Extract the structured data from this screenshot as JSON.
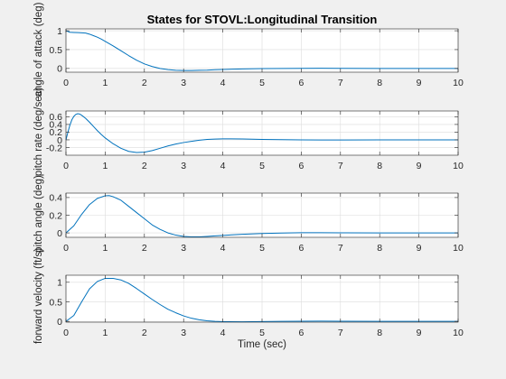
{
  "chart_data": [
    {
      "type": "line",
      "title": "States for STOVL:Longitudinal Transition",
      "ylabel": "angle of attack (deg)",
      "xlabel": "",
      "xlim": [
        0,
        10
      ],
      "ylim": [
        -0.1,
        1.05
      ],
      "xticks": [
        0,
        1,
        2,
        3,
        4,
        5,
        6,
        7,
        8,
        9,
        10
      ],
      "yticks": [
        0,
        0.5,
        1
      ],
      "ytick_labels": [
        "0",
        "0.5",
        "1"
      ],
      "grid": true,
      "color": "#0072BD",
      "series": [
        {
          "x": [
            0,
            0.1,
            0.2,
            0.3,
            0.4,
            0.5,
            0.6,
            0.7,
            0.8,
            0.9,
            1.0,
            1.2,
            1.4,
            1.6,
            1.8,
            2.0,
            2.2,
            2.4,
            2.6,
            2.8,
            3.0,
            3.2,
            3.4,
            3.6,
            3.8,
            4.0,
            4.5,
            5.0,
            5.5,
            6.0,
            6.5,
            7.0,
            8.0,
            9.0,
            10.0
          ],
          "y": [
            1.0,
            0.96,
            0.955,
            0.95,
            0.945,
            0.94,
            0.91,
            0.87,
            0.83,
            0.78,
            0.72,
            0.6,
            0.47,
            0.34,
            0.22,
            0.12,
            0.05,
            0.0,
            -0.03,
            -0.05,
            -0.055,
            -0.055,
            -0.05,
            -0.045,
            -0.035,
            -0.028,
            -0.012,
            -0.003,
            0.0,
            0.003,
            0.004,
            0.003,
            0.0,
            0.0,
            0.0
          ]
        }
      ]
    },
    {
      "type": "line",
      "title": "",
      "ylabel": "pitch rate (deg/sec)",
      "xlabel": "",
      "xlim": [
        0,
        10
      ],
      "ylim": [
        -0.4,
        0.75
      ],
      "xticks": [
        0,
        1,
        2,
        3,
        4,
        5,
        6,
        7,
        8,
        9,
        10
      ],
      "yticks": [
        -0.2,
        0,
        0.2,
        0.4,
        0.6
      ],
      "ytick_labels": [
        "-0.2",
        "0",
        "0.2",
        "0.4",
        "0.6"
      ],
      "grid": true,
      "color": "#0072BD",
      "series": [
        {
          "x": [
            0,
            0.05,
            0.1,
            0.15,
            0.2,
            0.25,
            0.3,
            0.35,
            0.4,
            0.5,
            0.6,
            0.7,
            0.8,
            0.9,
            1.0,
            1.2,
            1.4,
            1.6,
            1.8,
            2.0,
            2.2,
            2.4,
            2.6,
            2.8,
            3.0,
            3.2,
            3.4,
            3.6,
            3.8,
            4.0,
            4.2,
            4.5,
            5.0,
            5.5,
            6.0,
            6.5,
            7.0,
            8.0,
            9.0,
            10.0
          ],
          "y": [
            0.0,
            0.2,
            0.38,
            0.52,
            0.61,
            0.66,
            0.68,
            0.67,
            0.64,
            0.56,
            0.46,
            0.35,
            0.24,
            0.14,
            0.05,
            -0.1,
            -0.22,
            -0.3,
            -0.33,
            -0.32,
            -0.28,
            -0.22,
            -0.16,
            -0.11,
            -0.07,
            -0.04,
            -0.01,
            0.01,
            0.02,
            0.025,
            0.025,
            0.022,
            0.012,
            0.005,
            0.0,
            -0.004,
            -0.004,
            -0.002,
            0.0,
            0.0
          ]
        }
      ]
    },
    {
      "type": "line",
      "title": "",
      "ylabel": "pitch angle (deg)",
      "xlabel": "",
      "xlim": [
        0,
        10
      ],
      "ylim": [
        -0.05,
        0.45
      ],
      "xticks": [
        0,
        1,
        2,
        3,
        4,
        5,
        6,
        7,
        8,
        9,
        10
      ],
      "yticks": [
        0,
        0.2,
        0.4
      ],
      "ytick_labels": [
        "0",
        "0.2",
        "0.4"
      ],
      "grid": true,
      "color": "#0072BD",
      "series": [
        {
          "x": [
            0,
            0.2,
            0.4,
            0.6,
            0.8,
            1.0,
            1.1,
            1.2,
            1.4,
            1.6,
            1.8,
            2.0,
            2.2,
            2.4,
            2.6,
            2.8,
            3.0,
            3.2,
            3.4,
            3.6,
            3.8,
            4.0,
            4.5,
            5.0,
            5.5,
            6.0,
            6.5,
            7.0,
            8.0,
            9.0,
            10.0
          ],
          "y": [
            0.0,
            0.08,
            0.21,
            0.32,
            0.39,
            0.42,
            0.422,
            0.41,
            0.37,
            0.3,
            0.23,
            0.16,
            0.09,
            0.04,
            0.0,
            -0.025,
            -0.04,
            -0.045,
            -0.045,
            -0.04,
            -0.034,
            -0.028,
            -0.015,
            -0.006,
            -0.001,
            0.002,
            0.002,
            0.001,
            0.0,
            0.0,
            0.0
          ]
        }
      ]
    },
    {
      "type": "line",
      "title": "",
      "ylabel": "forward velocity (ft/s)",
      "xlabel": "Time (sec)",
      "xlim": [
        0,
        10
      ],
      "ylim": [
        -0.02,
        1.18
      ],
      "xticks": [
        0,
        1,
        2,
        3,
        4,
        5,
        6,
        7,
        8,
        9,
        10
      ],
      "yticks": [
        0,
        0.5,
        1
      ],
      "ytick_labels": [
        "0",
        "0.5",
        "1"
      ],
      "grid": true,
      "color": "#0072BD",
      "series": [
        {
          "x": [
            0,
            0.2,
            0.4,
            0.6,
            0.8,
            1.0,
            1.2,
            1.4,
            1.6,
            1.8,
            2.0,
            2.2,
            2.4,
            2.6,
            2.8,
            3.0,
            3.2,
            3.4,
            3.6,
            3.8,
            4.0,
            4.5,
            5.0,
            5.5,
            6.0,
            6.5,
            7.0,
            8.0,
            9.0,
            10.0
          ],
          "y": [
            0.0,
            0.15,
            0.5,
            0.83,
            1.02,
            1.1,
            1.1,
            1.06,
            0.97,
            0.84,
            0.7,
            0.56,
            0.43,
            0.31,
            0.22,
            0.14,
            0.08,
            0.04,
            0.015,
            0.0,
            -0.008,
            -0.01,
            -0.006,
            0.0,
            0.004,
            0.005,
            0.004,
            0.0,
            0.0,
            0.0
          ]
        }
      ]
    }
  ]
}
